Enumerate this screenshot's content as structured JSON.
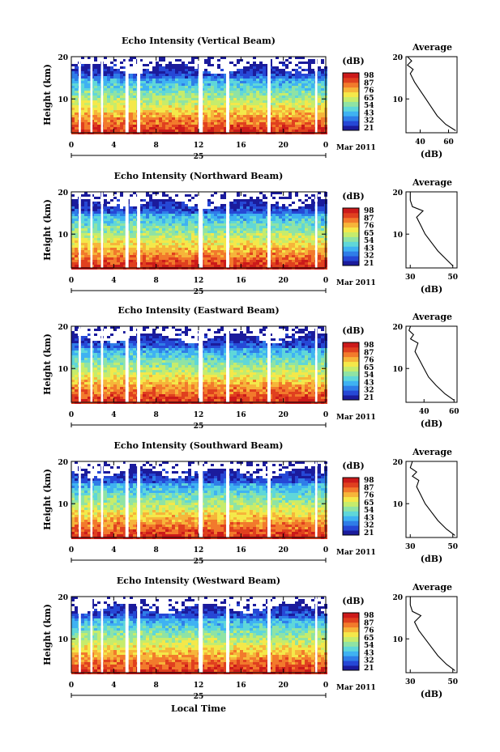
{
  "colors": {
    "colormap": [
      "#1b1b9c",
      "#2648d6",
      "#2f7de8",
      "#3fb2f2",
      "#5fd7d9",
      "#8fe3a4",
      "#c6ec6c",
      "#f4e84a",
      "#f6b53a",
      "#f27a2c",
      "#e0401f",
      "#cc1a1a"
    ]
  },
  "chart_data": [
    {
      "type": "heatmap",
      "title": "Echo Intensity (Vertical Beam)",
      "ylabel": "Height (km)",
      "x_ticks": [
        "0",
        "4",
        "8",
        "12",
        "16",
        "20",
        "0"
      ],
      "y_ticks": [
        "20",
        "10"
      ],
      "ylim": [
        2,
        20
      ],
      "xlim": [
        0,
        24
      ],
      "date_label": "25",
      "month_label": "Mar 2011",
      "gaps_hours": [
        [
          0.7,
          0.9
        ],
        [
          1.8,
          2.0
        ],
        [
          2.8,
          3.0
        ],
        [
          5.1,
          5.4
        ],
        [
          6.2,
          6.5
        ],
        [
          12.0,
          12.4
        ],
        [
          14.6,
          14.9
        ],
        [
          18.5,
          18.8
        ],
        [
          23.0,
          23.2
        ]
      ],
      "colorbar": {
        "unit": "(dB)",
        "labels": [
          "98",
          "87",
          "76",
          "65",
          "54",
          "43",
          "32",
          "21"
        ]
      },
      "profile": {
        "title": "Average",
        "xlabel": "(dB)",
        "x_ticks": [
          "40",
          "60"
        ],
        "xlim": [
          30,
          66
        ],
        "y_ticks": [
          "20",
          "10"
        ],
        "heights": [
          2.5,
          4,
          6,
          8,
          10,
          12,
          14,
          16,
          17,
          18,
          19,
          20
        ],
        "values": [
          65,
          58,
          52,
          48,
          44,
          40,
          36,
          33,
          35,
          31,
          34,
          31
        ]
      }
    },
    {
      "type": "heatmap",
      "title": "Echo Intensity (Northward Beam)",
      "ylabel": "Height (km)",
      "x_ticks": [
        "0",
        "4",
        "8",
        "12",
        "16",
        "20",
        "0"
      ],
      "y_ticks": [
        "20",
        "10"
      ],
      "ylim": [
        2,
        20
      ],
      "xlim": [
        0,
        24
      ],
      "date_label": "25",
      "month_label": "Mar 2011",
      "gaps_hours": [
        [
          0.7,
          0.9
        ],
        [
          1.8,
          2.0
        ],
        [
          2.8,
          3.0
        ],
        [
          5.1,
          5.4
        ],
        [
          6.2,
          6.5
        ],
        [
          12.0,
          12.4
        ],
        [
          14.6,
          14.9
        ],
        [
          18.5,
          18.8
        ],
        [
          23.0,
          23.2
        ]
      ],
      "colorbar": {
        "unit": "(dB)",
        "labels": [
          "98",
          "87",
          "76",
          "65",
          "54",
          "43",
          "32",
          "21"
        ]
      },
      "profile": {
        "title": "Average",
        "xlabel": "(dB)",
        "x_ticks": [
          "30",
          "50"
        ],
        "xlim": [
          28,
          52
        ],
        "y_ticks": [
          "20",
          "10"
        ],
        "heights": [
          2.5,
          4,
          6,
          8,
          10,
          12,
          14,
          15.5,
          16.5,
          18,
          20
        ],
        "values": [
          50,
          47,
          43,
          40,
          37,
          35,
          33,
          36,
          31,
          30,
          30
        ]
      }
    },
    {
      "type": "heatmap",
      "title": "Echo Intensity (Eastward Beam)",
      "ylabel": "Height (km)",
      "x_ticks": [
        "0",
        "4",
        "8",
        "12",
        "16",
        "20",
        "0"
      ],
      "y_ticks": [
        "20",
        "10"
      ],
      "ylim": [
        2,
        20
      ],
      "xlim": [
        0,
        24
      ],
      "date_label": "25",
      "month_label": "Mar 2011",
      "gaps_hours": [
        [
          0.7,
          0.9
        ],
        [
          1.8,
          2.0
        ],
        [
          2.8,
          3.0
        ],
        [
          5.1,
          5.4
        ],
        [
          6.2,
          6.5
        ],
        [
          12.0,
          12.4
        ],
        [
          14.6,
          14.9
        ],
        [
          18.5,
          18.8
        ],
        [
          23.0,
          23.2
        ]
      ],
      "colorbar": {
        "unit": "(dB)",
        "labels": [
          "98",
          "87",
          "76",
          "65",
          "54",
          "43",
          "32",
          "21"
        ]
      },
      "profile": {
        "title": "Average",
        "xlabel": "(dB)",
        "x_ticks": [
          "40",
          "60"
        ],
        "xlim": [
          28,
          62
        ],
        "y_ticks": [
          "20",
          "10"
        ],
        "heights": [
          2.5,
          4,
          6,
          8,
          10,
          12,
          14,
          16,
          17,
          18,
          19,
          20
        ],
        "values": [
          60,
          54,
          48,
          43,
          40,
          37,
          34,
          36,
          31,
          33,
          30,
          31
        ]
      }
    },
    {
      "type": "heatmap",
      "title": "Echo Intensity (Southward Beam)",
      "ylabel": "Height (km)",
      "x_ticks": [
        "0",
        "4",
        "8",
        "12",
        "16",
        "20",
        "0"
      ],
      "y_ticks": [
        "20",
        "10"
      ],
      "ylim": [
        2,
        20
      ],
      "xlim": [
        0,
        24
      ],
      "date_label": "25",
      "month_label": "Mar 2011",
      "gaps_hours": [
        [
          0.7,
          0.9
        ],
        [
          1.8,
          2.0
        ],
        [
          2.8,
          3.0
        ],
        [
          5.1,
          5.4
        ],
        [
          6.2,
          6.5
        ],
        [
          12.0,
          12.4
        ],
        [
          14.6,
          14.9
        ],
        [
          18.5,
          18.8
        ],
        [
          23.0,
          23.2
        ]
      ],
      "colorbar": {
        "unit": "(dB)",
        "labels": [
          "98",
          "87",
          "76",
          "65",
          "54",
          "43",
          "32",
          "21"
        ]
      },
      "profile": {
        "title": "Average",
        "xlabel": "(dB)",
        "x_ticks": [
          "30",
          "50"
        ],
        "xlim": [
          28,
          52
        ],
        "y_ticks": [
          "20",
          "10"
        ],
        "heights": [
          2.5,
          4,
          6,
          8,
          10,
          12,
          14,
          15.5,
          16.5,
          17.5,
          18.5,
          20
        ],
        "values": [
          51,
          47,
          43,
          40,
          37,
          35,
          33,
          34,
          31,
          33,
          30,
          31
        ]
      }
    },
    {
      "type": "heatmap",
      "title": "Echo Intensity (Westward Beam)",
      "ylabel": "Height (km)",
      "x_ticks": [
        "0",
        "4",
        "8",
        "12",
        "16",
        "20",
        "0"
      ],
      "y_ticks": [
        "20",
        "10"
      ],
      "ylim": [
        2,
        20
      ],
      "xlim": [
        0,
        24
      ],
      "date_label": "25",
      "month_label": "Mar 2011",
      "xlabel": "Local Time",
      "gaps_hours": [
        [
          0.7,
          0.9
        ],
        [
          1.8,
          2.0
        ],
        [
          2.8,
          3.0
        ],
        [
          5.1,
          5.4
        ],
        [
          6.2,
          6.5
        ],
        [
          12.0,
          12.4
        ],
        [
          14.6,
          14.9
        ],
        [
          18.5,
          18.8
        ],
        [
          23.0,
          23.2
        ]
      ],
      "colorbar": {
        "unit": "(dB)",
        "labels": [
          "98",
          "87",
          "76",
          "65",
          "54",
          "43",
          "32",
          "21"
        ]
      },
      "profile": {
        "title": "Average",
        "xlabel": "(dB)",
        "x_ticks": [
          "30",
          "50"
        ],
        "xlim": [
          28,
          52
        ],
        "y_ticks": [
          "20",
          "10"
        ],
        "heights": [
          2.5,
          4,
          6,
          8,
          10,
          12,
          14,
          15.5,
          16.5,
          18,
          20
        ],
        "values": [
          51,
          47,
          43,
          40,
          37,
          34,
          32,
          35,
          31,
          30,
          30
        ]
      }
    }
  ]
}
